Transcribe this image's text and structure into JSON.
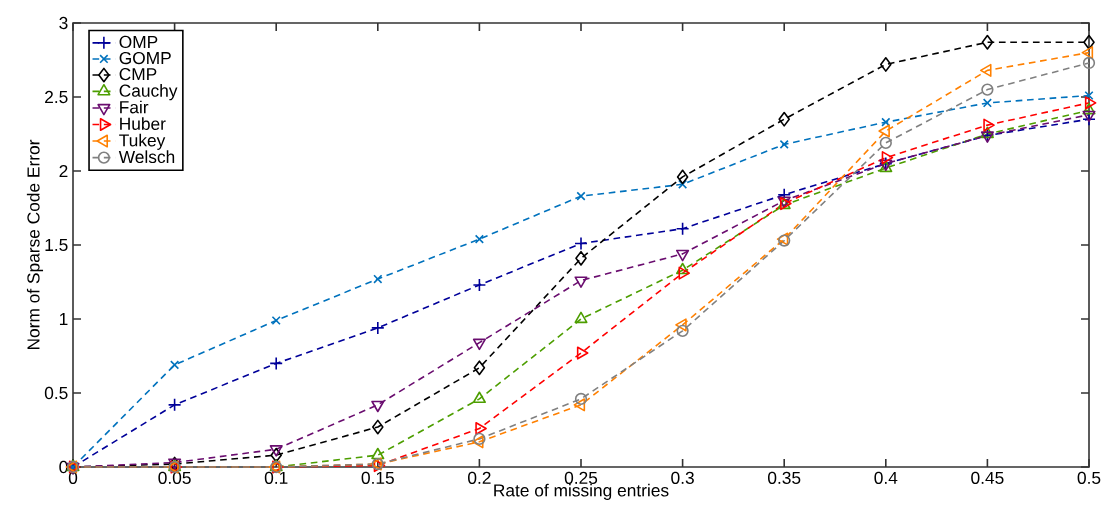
{
  "chart_data": {
    "type": "line",
    "xlabel": "Rate of missing entries",
    "ylabel": "Norm of Sparse Code Error",
    "x": [
      0,
      0.05,
      0.1,
      0.15,
      0.2,
      0.25,
      0.3,
      0.35,
      0.4,
      0.45,
      0.5
    ],
    "xlim": [
      0,
      0.5
    ],
    "xticks": [
      0,
      0.05,
      0.1,
      0.15,
      0.2,
      0.25,
      0.3,
      0.35,
      0.4,
      0.45,
      0.5
    ],
    "ylim": [
      0,
      3
    ],
    "yticks": [
      0,
      0.5,
      1,
      1.5,
      2,
      2.5,
      3
    ],
    "grid": false,
    "legend": "top left",
    "line_style": "dashed",
    "series": [
      {
        "name": "OMP",
        "color": "#000099",
        "marker": "plus",
        "values": [
          0,
          0.42,
          0.7,
          0.94,
          1.23,
          1.51,
          1.61,
          1.84,
          2.05,
          2.24,
          2.35
        ]
      },
      {
        "name": "GOMP",
        "color": "#0072bd",
        "marker": "x",
        "values": [
          0,
          0.69,
          0.99,
          1.27,
          1.54,
          1.83,
          1.91,
          2.18,
          2.33,
          2.46,
          2.51
        ]
      },
      {
        "name": "CMP",
        "color": "#000000",
        "marker": "diamond",
        "values": [
          0,
          0.02,
          0.08,
          0.27,
          0.67,
          1.41,
          1.96,
          2.35,
          2.72,
          2.87,
          2.87
        ]
      },
      {
        "name": "Cauchy",
        "color": "#4d9e00",
        "marker": "triangle",
        "values": [
          0,
          0,
          0,
          0.08,
          0.46,
          1.0,
          1.33,
          1.77,
          2.02,
          2.25,
          2.41
        ]
      },
      {
        "name": "Fair",
        "color": "#6a0d6f",
        "marker": "triangle down",
        "values": [
          0,
          0.03,
          0.12,
          0.42,
          0.84,
          1.26,
          1.44,
          1.8,
          2.05,
          2.24,
          2.38
        ]
      },
      {
        "name": "Huber",
        "color": "#ff0000",
        "marker": "triangle right",
        "values": [
          0,
          0,
          0,
          0.01,
          0.26,
          0.77,
          1.31,
          1.78,
          2.09,
          2.31,
          2.46
        ]
      },
      {
        "name": "Tukey",
        "color": "#ff8000",
        "marker": "triangle left",
        "values": [
          0,
          0,
          0,
          0.02,
          0.17,
          0.42,
          0.96,
          1.54,
          2.27,
          2.68,
          2.8
        ]
      },
      {
        "name": "Welsch",
        "color": "#808080",
        "marker": "circle",
        "values": [
          0,
          0,
          0,
          0.02,
          0.19,
          0.46,
          0.92,
          1.53,
          2.19,
          2.55,
          2.73
        ]
      }
    ]
  }
}
